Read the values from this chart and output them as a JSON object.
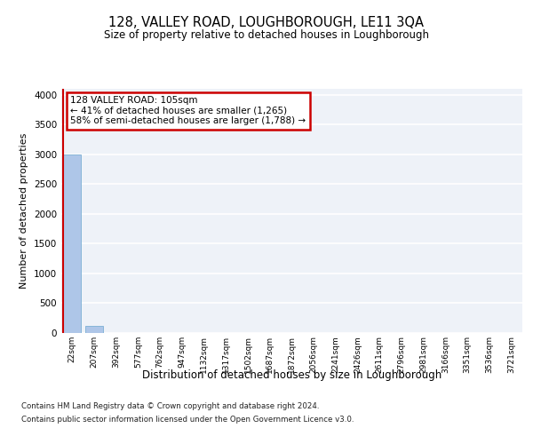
{
  "title": "128, VALLEY ROAD, LOUGHBOROUGH, LE11 3QA",
  "subtitle": "Size of property relative to detached houses in Loughborough",
  "xlabel": "Distribution of detached houses by size in Loughborough",
  "ylabel": "Number of detached properties",
  "categories": [
    "22sqm",
    "207sqm",
    "392sqm",
    "577sqm",
    "762sqm",
    "947sqm",
    "1132sqm",
    "1317sqm",
    "1502sqm",
    "1687sqm",
    "1872sqm",
    "2056sqm",
    "2241sqm",
    "2426sqm",
    "2611sqm",
    "2796sqm",
    "2981sqm",
    "3166sqm",
    "3351sqm",
    "3536sqm",
    "3721sqm"
  ],
  "values": [
    2990,
    115,
    0,
    0,
    0,
    0,
    0,
    0,
    0,
    0,
    0,
    0,
    0,
    0,
    0,
    0,
    0,
    0,
    0,
    0,
    0
  ],
  "bar_color": "#aec6e8",
  "bar_edge_color": "#7bafd4",
  "annotation_line1": "128 VALLEY ROAD: 105sqm",
  "annotation_line2": "← 41% of detached houses are smaller (1,265)",
  "annotation_line3": "58% of semi-detached houses are larger (1,788) →",
  "annotation_box_color": "#ffffff",
  "annotation_border_color": "#cc0000",
  "property_line_color": "#cc0000",
  "ylim": [
    0,
    4100
  ],
  "yticks": [
    0,
    500,
    1000,
    1500,
    2000,
    2500,
    3000,
    3500,
    4000
  ],
  "background_color": "#eef2f8",
  "grid_color": "#ffffff",
  "footer_line1": "Contains HM Land Registry data © Crown copyright and database right 2024.",
  "footer_line2": "Contains public sector information licensed under the Open Government Licence v3.0."
}
